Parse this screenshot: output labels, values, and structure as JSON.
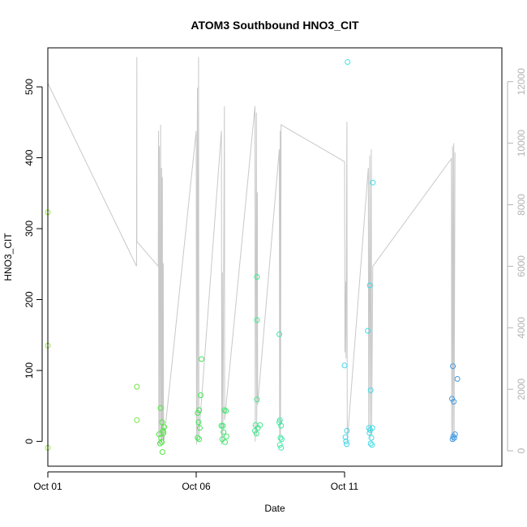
{
  "chart_data": {
    "type": "scatter",
    "title": "ATOM3 Southbound HNO3_CIT",
    "xlabel": "Date",
    "ylabel": "HNO3_CIT",
    "xlim_days": [
      0.0,
      15.3
    ],
    "ylim": [
      -35,
      555
    ],
    "y2lim": [
      -500,
      13100
    ],
    "x_ticks": [
      {
        "day": 0,
        "label": "Oct 01"
      },
      {
        "day": 5,
        "label": "Oct 06"
      },
      {
        "day": 10,
        "label": "Oct 11"
      }
    ],
    "y_ticks": [
      {
        "value": 0,
        "label": "0"
      },
      {
        "value": 100,
        "label": "100"
      },
      {
        "value": 200,
        "label": "200"
      },
      {
        "value": 300,
        "label": "300"
      },
      {
        "value": 400,
        "label": "400"
      },
      {
        "value": 500,
        "label": "500"
      }
    ],
    "y2_ticks": [
      {
        "value": 0,
        "label": "0"
      },
      {
        "value": 2000,
        "label": "2000"
      },
      {
        "value": 4000,
        "label": "4000"
      },
      {
        "value": 6000,
        "label": "6000"
      },
      {
        "value": 8000,
        "label": "8000"
      },
      {
        "value": 10000,
        "label": "10000"
      },
      {
        "value": 12000,
        "label": "12000"
      }
    ],
    "points": [
      {
        "x": 0.0,
        "y": 323,
        "color": "#99e63f"
      },
      {
        "x": 0.0,
        "y": 135,
        "color": "#99e63f"
      },
      {
        "x": 0.0,
        "y": -9,
        "color": "#99e63f"
      },
      {
        "x": 3.0,
        "y": 77,
        "color": "#6ee63f"
      },
      {
        "x": 3.0,
        "y": 30,
        "color": "#6ee63f"
      },
      {
        "x": 3.8,
        "y": 47,
        "color": "#4fe63f"
      },
      {
        "x": 3.85,
        "y": 27,
        "color": "#4fe63f"
      },
      {
        "x": 3.75,
        "y": 10,
        "color": "#4fe63f"
      },
      {
        "x": 3.82,
        "y": 5,
        "color": "#4fe63f"
      },
      {
        "x": 3.88,
        "y": 15,
        "color": "#4fe63f"
      },
      {
        "x": 3.78,
        "y": -3,
        "color": "#4fe63f"
      },
      {
        "x": 3.84,
        "y": -1,
        "color": "#4fe63f"
      },
      {
        "x": 3.9,
        "y": 12,
        "color": "#4fe63f"
      },
      {
        "x": 3.86,
        "y": -15,
        "color": "#4fe63f"
      },
      {
        "x": 3.92,
        "y": 20,
        "color": "#4fe63f"
      },
      {
        "x": 5.05,
        "y": 40,
        "color": "#3fe655"
      },
      {
        "x": 5.1,
        "y": 44,
        "color": "#3fe655"
      },
      {
        "x": 5.08,
        "y": 27,
        "color": "#3fe655"
      },
      {
        "x": 5.12,
        "y": 19,
        "color": "#3fe655"
      },
      {
        "x": 5.05,
        "y": 5,
        "color": "#3fe655"
      },
      {
        "x": 5.1,
        "y": 3,
        "color": "#3fe655"
      },
      {
        "x": 5.15,
        "y": 65,
        "color": "#3fe655"
      },
      {
        "x": 5.18,
        "y": 116,
        "color": "#3fe655"
      },
      {
        "x": 5.85,
        "y": 22,
        "color": "#3fe66e"
      },
      {
        "x": 5.9,
        "y": 22,
        "color": "#3fe66e"
      },
      {
        "x": 5.95,
        "y": 44,
        "color": "#3fe66e"
      },
      {
        "x": 6.0,
        "y": 43,
        "color": "#3fe66e"
      },
      {
        "x": 5.92,
        "y": 13,
        "color": "#3fe66e"
      },
      {
        "x": 5.88,
        "y": 3,
        "color": "#3fe66e"
      },
      {
        "x": 6.02,
        "y": 7,
        "color": "#3fe66e"
      },
      {
        "x": 5.97,
        "y": -1,
        "color": "#3fe66e"
      },
      {
        "x": 7.05,
        "y": 232,
        "color": "#3fe68a"
      },
      {
        "x": 7.05,
        "y": 171,
        "color": "#3fe68a"
      },
      {
        "x": 7.05,
        "y": 59,
        "color": "#3fe68a"
      },
      {
        "x": 7.0,
        "y": 23,
        "color": "#3fe68a"
      },
      {
        "x": 7.15,
        "y": 23,
        "color": "#3fe68a"
      },
      {
        "x": 6.98,
        "y": 15,
        "color": "#3fe68a"
      },
      {
        "x": 7.03,
        "y": 11,
        "color": "#3fe68a"
      },
      {
        "x": 7.08,
        "y": 19,
        "color": "#3fe68a"
      },
      {
        "x": 7.8,
        "y": 151,
        "color": "#3fe6a5"
      },
      {
        "x": 7.82,
        "y": 30,
        "color": "#3fe6a5"
      },
      {
        "x": 7.86,
        "y": 22,
        "color": "#3fe6a5"
      },
      {
        "x": 7.8,
        "y": 27,
        "color": "#3fe6a5"
      },
      {
        "x": 7.84,
        "y": 5,
        "color": "#3fe6a5"
      },
      {
        "x": 7.88,
        "y": 3,
        "color": "#3fe6a5"
      },
      {
        "x": 7.82,
        "y": -5,
        "color": "#3fe6a5"
      },
      {
        "x": 7.86,
        "y": -9,
        "color": "#3fe6a5"
      },
      {
        "x": 10.1,
        "y": 535,
        "color": "#3fe6e6"
      },
      {
        "x": 10.0,
        "y": 107,
        "color": "#3fd6e6"
      },
      {
        "x": 10.08,
        "y": 15,
        "color": "#3fd6e6"
      },
      {
        "x": 10.03,
        "y": 6,
        "color": "#3fd6e6"
      },
      {
        "x": 10.05,
        "y": 0,
        "color": "#3fd6e6"
      },
      {
        "x": 10.07,
        "y": -4,
        "color": "#3fd6e6"
      },
      {
        "x": 10.78,
        "y": 156,
        "color": "#3fdae6"
      },
      {
        "x": 10.85,
        "y": 220,
        "color": "#3fdae6"
      },
      {
        "x": 10.95,
        "y": 365,
        "color": "#3fdae6"
      },
      {
        "x": 10.88,
        "y": 72,
        "color": "#3fdae6"
      },
      {
        "x": 10.82,
        "y": 19,
        "color": "#3fdae6"
      },
      {
        "x": 10.86,
        "y": 16,
        "color": "#3fdae6"
      },
      {
        "x": 10.93,
        "y": 19,
        "color": "#3fdae6"
      },
      {
        "x": 10.84,
        "y": 12,
        "color": "#3fdae6"
      },
      {
        "x": 10.9,
        "y": 5,
        "color": "#3fdae6"
      },
      {
        "x": 10.88,
        "y": -3,
        "color": "#3fdae6"
      },
      {
        "x": 10.92,
        "y": -5,
        "color": "#3fdae6"
      },
      {
        "x": 13.65,
        "y": 106,
        "color": "#3f9ae6"
      },
      {
        "x": 13.8,
        "y": 88,
        "color": "#3f9ae6"
      },
      {
        "x": 13.62,
        "y": 60,
        "color": "#3f9ae6"
      },
      {
        "x": 13.68,
        "y": 56,
        "color": "#3f9ae6"
      },
      {
        "x": 13.72,
        "y": 10,
        "color": "#3f9ae6"
      },
      {
        "x": 13.66,
        "y": 7,
        "color": "#3f9ae6"
      },
      {
        "x": 13.64,
        "y": 3,
        "color": "#3f9ae6"
      },
      {
        "x": 13.7,
        "y": 5,
        "color": "#3f9ae6"
      }
    ],
    "secondary_line": {
      "color": "#c8c8c8",
      "y2_axis": true,
      "points": [
        [
          0.0,
          250
        ],
        [
          0.0,
          11950
        ],
        [
          2.99,
          6000
        ],
        [
          3.0,
          12800
        ],
        [
          3.0,
          6800
        ],
        [
          3.72,
          6000
        ],
        [
          3.73,
          10400
        ],
        [
          3.74,
          200
        ],
        [
          3.76,
          9900
        ],
        [
          3.77,
          500
        ],
        [
          3.79,
          6000
        ],
        [
          3.8,
          10600
        ],
        [
          3.81,
          200
        ],
        [
          3.83,
          9200
        ],
        [
          3.84,
          300
        ],
        [
          3.86,
          8900
        ],
        [
          3.87,
          400
        ],
        [
          3.89,
          6100
        ],
        [
          3.9,
          200
        ],
        [
          5.0,
          10400
        ],
        [
          5.01,
          200
        ],
        [
          5.04,
          11800
        ],
        [
          5.05,
          300
        ],
        [
          5.08,
          12800
        ],
        [
          5.09,
          500
        ],
        [
          5.85,
          10400
        ],
        [
          5.86,
          200
        ],
        [
          5.88,
          5800
        ],
        [
          5.9,
          300
        ],
        [
          5.95,
          11200
        ],
        [
          5.96,
          1000
        ],
        [
          6.98,
          11200
        ],
        [
          6.99,
          300
        ],
        [
          7.03,
          11000
        ],
        [
          7.04,
          500
        ],
        [
          7.06,
          8400
        ],
        [
          7.07,
          1500
        ],
        [
          7.8,
          9800
        ],
        [
          7.81,
          300
        ],
        [
          7.83,
          10400
        ],
        [
          7.84,
          500
        ],
        [
          7.86,
          10600
        ],
        [
          10.0,
          9400
        ],
        [
          10.01,
          3200
        ],
        [
          10.04,
          5500
        ],
        [
          10.05,
          3000
        ],
        [
          10.08,
          10700
        ],
        [
          10.09,
          300
        ],
        [
          10.8,
          9200
        ],
        [
          10.81,
          600
        ],
        [
          10.85,
          9600
        ],
        [
          10.86,
          400
        ],
        [
          10.9,
          9800
        ],
        [
          10.91,
          500
        ],
        [
          10.95,
          6000
        ],
        [
          13.6,
          9500
        ],
        [
          13.61,
          300
        ],
        [
          13.64,
          9900
        ],
        [
          13.65,
          300
        ],
        [
          13.68,
          10000
        ],
        [
          13.69,
          400
        ],
        [
          13.72,
          9700
        ]
      ]
    }
  }
}
